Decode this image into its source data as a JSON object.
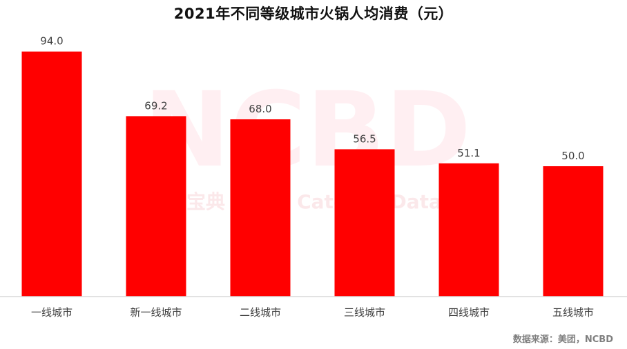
{
  "title": "2021年不同等级城市火锅人均消费（元）",
  "source": "数据来源：美团，NCBD",
  "watermark": {
    "main": "NCBD",
    "sub": "宝典",
    "sub_en": "Caterng Data"
  },
  "colors": {
    "bar": "#ff0000",
    "axis": "#d9d9d9",
    "label": "#404040"
  },
  "chart_data": {
    "type": "bar",
    "title": "2021年不同等级城市火锅人均消费（元）",
    "categories": [
      "一线城市",
      "新一线城市",
      "二线城市",
      "三线城市",
      "四线城市",
      "五线城市"
    ],
    "values": [
      94.0,
      69.2,
      68.0,
      56.5,
      51.1,
      50.0
    ],
    "value_labels": [
      "94.0",
      "69.2",
      "68.0",
      "56.5",
      "51.1",
      "50.0"
    ],
    "xlabel": "",
    "ylabel": "",
    "ylim": [
      0,
      100
    ],
    "grid": false,
    "legend": "none"
  }
}
